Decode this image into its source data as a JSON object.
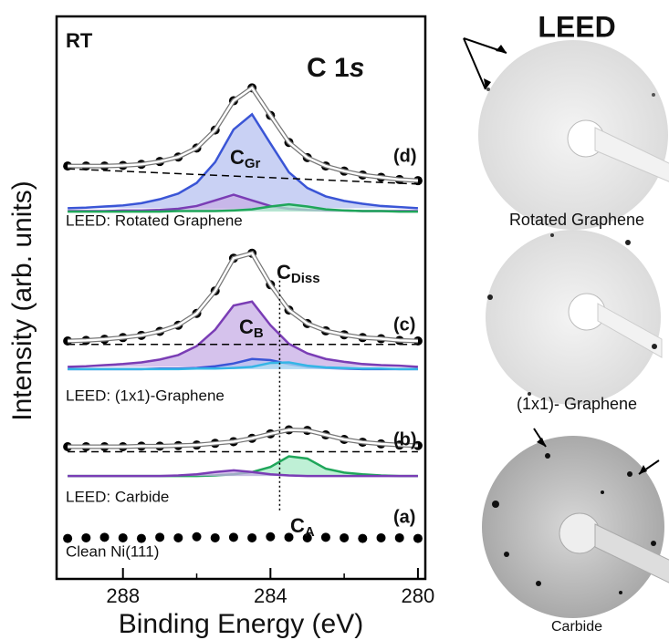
{
  "chart_data": {
    "type": "xps-stack",
    "annotation": "RT",
    "title": {
      "text": "C 1",
      "italic": "s"
    },
    "x_label": "Binding Energy (eV)",
    "y_label": "Intensity (arb. units)",
    "x": [
      289.5,
      289,
      288.5,
      288,
      287.5,
      287,
      286.5,
      286,
      285.5,
      285,
      284.5,
      284,
      283.5,
      283,
      282.5,
      282,
      281.5,
      281,
      280.5,
      280
    ],
    "xlim": [
      289.8,
      279.8
    ],
    "ylim": [
      0,
      100
    ],
    "xticks": [
      288,
      284,
      280
    ],
    "xminorticks": [
      286,
      282
    ],
    "fit_color": "#ffffff",
    "point_color": "#000000",
    "spectra": [
      {
        "label": "(d)",
        "caption": "LEED: Rotated Graphene",
        "fit": [
          73.4,
          73.4,
          73.4,
          73.5,
          73.7,
          74.2,
          75.0,
          76.6,
          79.8,
          85.0,
          87.3,
          82.4,
          77.6,
          74.9,
          73.4,
          72.5,
          71.8,
          71.4,
          71.0,
          70.8
        ],
        "background": [
          72.9,
          70.2
        ],
        "components": [
          {
            "color": "#3a55d6",
            "fill": "#b7c1f0",
            "values": [
              65.9,
              66.0,
              66.2,
              66.4,
              66.8,
              67.5,
              68.5,
              70.4,
              74.1,
              79.9,
              82.6,
              77.4,
              72.3,
              69.5,
              68.0,
              67.2,
              66.7,
              66.3,
              66.1,
              65.9
            ]
          },
          {
            "color": "#7a3db5",
            "fill": "#c7aee6",
            "values": [
              65.4,
              65.4,
              65.4,
              65.5,
              65.5,
              65.6,
              65.8,
              66.3,
              67.3,
              68.3,
              67.3,
              66.3,
              65.8,
              65.6,
              65.5,
              65.5,
              65.4,
              65.4,
              65.4,
              65.4
            ]
          },
          {
            "color": "#1fa65a",
            "fill": "#a9ebc8",
            "values": [
              65.3,
              65.3,
              65.3,
              65.3,
              65.3,
              65.3,
              65.4,
              65.4,
              65.4,
              65.5,
              65.7,
              66.2,
              66.6,
              66.2,
              65.7,
              65.5,
              65.4,
              65.4,
              65.3,
              65.3
            ]
          }
        ]
      },
      {
        "label": "(c)",
        "caption": "LEED: (1x1)-Graphene",
        "fit": [
          42.3,
          42.4,
          42.6,
          42.9,
          43.3,
          44.0,
          45.1,
          47.2,
          51.2,
          57.0,
          57.9,
          52.3,
          47.8,
          45.4,
          44.1,
          43.4,
          42.9,
          42.7,
          42.4,
          42.3
        ],
        "background": [
          41.7,
          41.7
        ],
        "components": [
          {
            "color": "#7a3db5",
            "fill": "#c7aee6",
            "values": [
              37.7,
              37.8,
              38.0,
              38.2,
              38.5,
              39.0,
              39.8,
              41.4,
              44.3,
              48.6,
              49.3,
              45.1,
              41.8,
              40.1,
              39.1,
              38.6,
              38.2,
              38.0,
              37.9,
              37.7
            ]
          },
          {
            "color": "#3a55d6",
            "fill": "#b7c1f0",
            "values": [
              37.3,
              37.3,
              37.3,
              37.3,
              37.3,
              37.4,
              37.4,
              37.5,
              37.8,
              38.3,
              39.1,
              38.9,
              38.2,
              37.7,
              37.5,
              37.4,
              37.3,
              37.3,
              37.3,
              37.3
            ]
          },
          {
            "color": "#35b5e6",
            "fill": "#acdcf2",
            "values": [
              37.3,
              37.3,
              37.3,
              37.3,
              37.3,
              37.3,
              37.3,
              37.4,
              37.4,
              37.5,
              37.7,
              38.4,
              38.5,
              37.9,
              37.6,
              37.5,
              37.4,
              37.4,
              37.3,
              37.3
            ]
          }
        ]
      },
      {
        "label": "(b)",
        "caption": "LEED: Carbide",
        "fit": [
          23.5,
          23.5,
          23.5,
          23.5,
          23.6,
          23.6,
          23.7,
          23.8,
          24.1,
          24.4,
          25.0,
          25.8,
          26.5,
          26.4,
          25.6,
          24.8,
          24.3,
          24.0,
          23.8,
          23.7
        ],
        "background": [
          22.6,
          22.6
        ],
        "components": [
          {
            "color": "#1fa65a",
            "fill": "#a9ebc8",
            "values": [
              18.3,
              18.3,
              18.3,
              18.3,
              18.3,
              18.3,
              18.3,
              18.3,
              18.4,
              18.6,
              19.0,
              19.9,
              21.8,
              21.4,
              19.6,
              18.9,
              18.6,
              18.4,
              18.3,
              18.3
            ]
          },
          {
            "color": "#7a3db5",
            "fill": "#c7aee6",
            "values": [
              18.3,
              18.3,
              18.3,
              18.3,
              18.3,
              18.3,
              18.4,
              18.6,
              19.0,
              19.3,
              19.0,
              18.6,
              18.4,
              18.3,
              18.3,
              18.3,
              18.3,
              18.3,
              18.3,
              18.3
            ]
          }
        ]
      },
      {
        "label": "(a)",
        "caption": "Clean Ni(111)",
        "fit": [
          7.2,
          7.3,
          7.4,
          7.3,
          7.2,
          7.4,
          7.3,
          7.5,
          7.3,
          7.4,
          7.3,
          7.5,
          7.4,
          7.3,
          7.4,
          7.3,
          7.2,
          7.3,
          7.3,
          7.2
        ],
        "components": []
      }
    ],
    "peak_labels": [
      {
        "main": "C",
        "sub": "Gr"
      },
      {
        "main": "C",
        "sub": "Diss"
      },
      {
        "main": "C",
        "sub": "B"
      },
      {
        "main": "C",
        "sub": "A"
      }
    ],
    "marker_line": {
      "x": 283.75,
      "y": [
        12.2,
        54.3
      ]
    },
    "leed": {
      "title": "LEED",
      "captions": [
        "Rotated Graphene",
        "(1x1)- Graphene",
        "Carbide"
      ]
    }
  }
}
